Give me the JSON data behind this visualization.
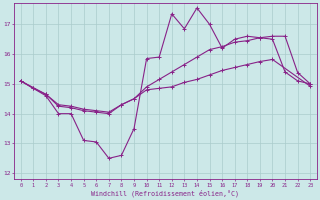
{
  "xlabel": "Windchill (Refroidissement éolien,°C)",
  "xlim": [
    -0.5,
    23.5
  ],
  "ylim": [
    11.8,
    17.7
  ],
  "xticks": [
    0,
    1,
    2,
    3,
    4,
    5,
    6,
    7,
    8,
    9,
    10,
    11,
    12,
    13,
    14,
    15,
    16,
    17,
    18,
    19,
    20,
    21,
    22,
    23
  ],
  "yticks": [
    12,
    13,
    14,
    15,
    16,
    17
  ],
  "background_color": "#cce8e8",
  "grid_color": "#aacccc",
  "line_color": "#882288",
  "line1_x": [
    0,
    1,
    2,
    3,
    4,
    5,
    6,
    7,
    8,
    9,
    10,
    11,
    12,
    13,
    14,
    15,
    16,
    17,
    18,
    19,
    20,
    21,
    22,
    23
  ],
  "line1_y": [
    15.1,
    14.85,
    14.6,
    14.0,
    14.0,
    13.1,
    13.05,
    12.5,
    12.6,
    13.5,
    15.85,
    15.9,
    17.35,
    16.85,
    17.55,
    17.0,
    16.2,
    16.5,
    16.6,
    16.55,
    16.5,
    15.4,
    15.1,
    15.0
  ],
  "line2_x": [
    0,
    1,
    2,
    3,
    4,
    5,
    6,
    7,
    8,
    9,
    10,
    11,
    12,
    13,
    14,
    15,
    16,
    17,
    18,
    19,
    20,
    21,
    22,
    23
  ],
  "line2_y": [
    15.1,
    14.85,
    14.65,
    14.3,
    14.25,
    14.15,
    14.1,
    14.05,
    14.3,
    14.5,
    14.9,
    15.15,
    15.4,
    15.65,
    15.9,
    16.15,
    16.25,
    16.4,
    16.45,
    16.55,
    16.6,
    16.6,
    15.38,
    15.0
  ],
  "line3_x": [
    0,
    2,
    3,
    4,
    5,
    6,
    7,
    8,
    9,
    10,
    11,
    12,
    13,
    14,
    15,
    16,
    17,
    18,
    19,
    20,
    23
  ],
  "line3_y": [
    15.1,
    14.65,
    14.25,
    14.2,
    14.1,
    14.05,
    14.0,
    14.3,
    14.5,
    14.8,
    14.85,
    14.9,
    15.05,
    15.15,
    15.3,
    15.45,
    15.55,
    15.65,
    15.75,
    15.82,
    14.92
  ]
}
